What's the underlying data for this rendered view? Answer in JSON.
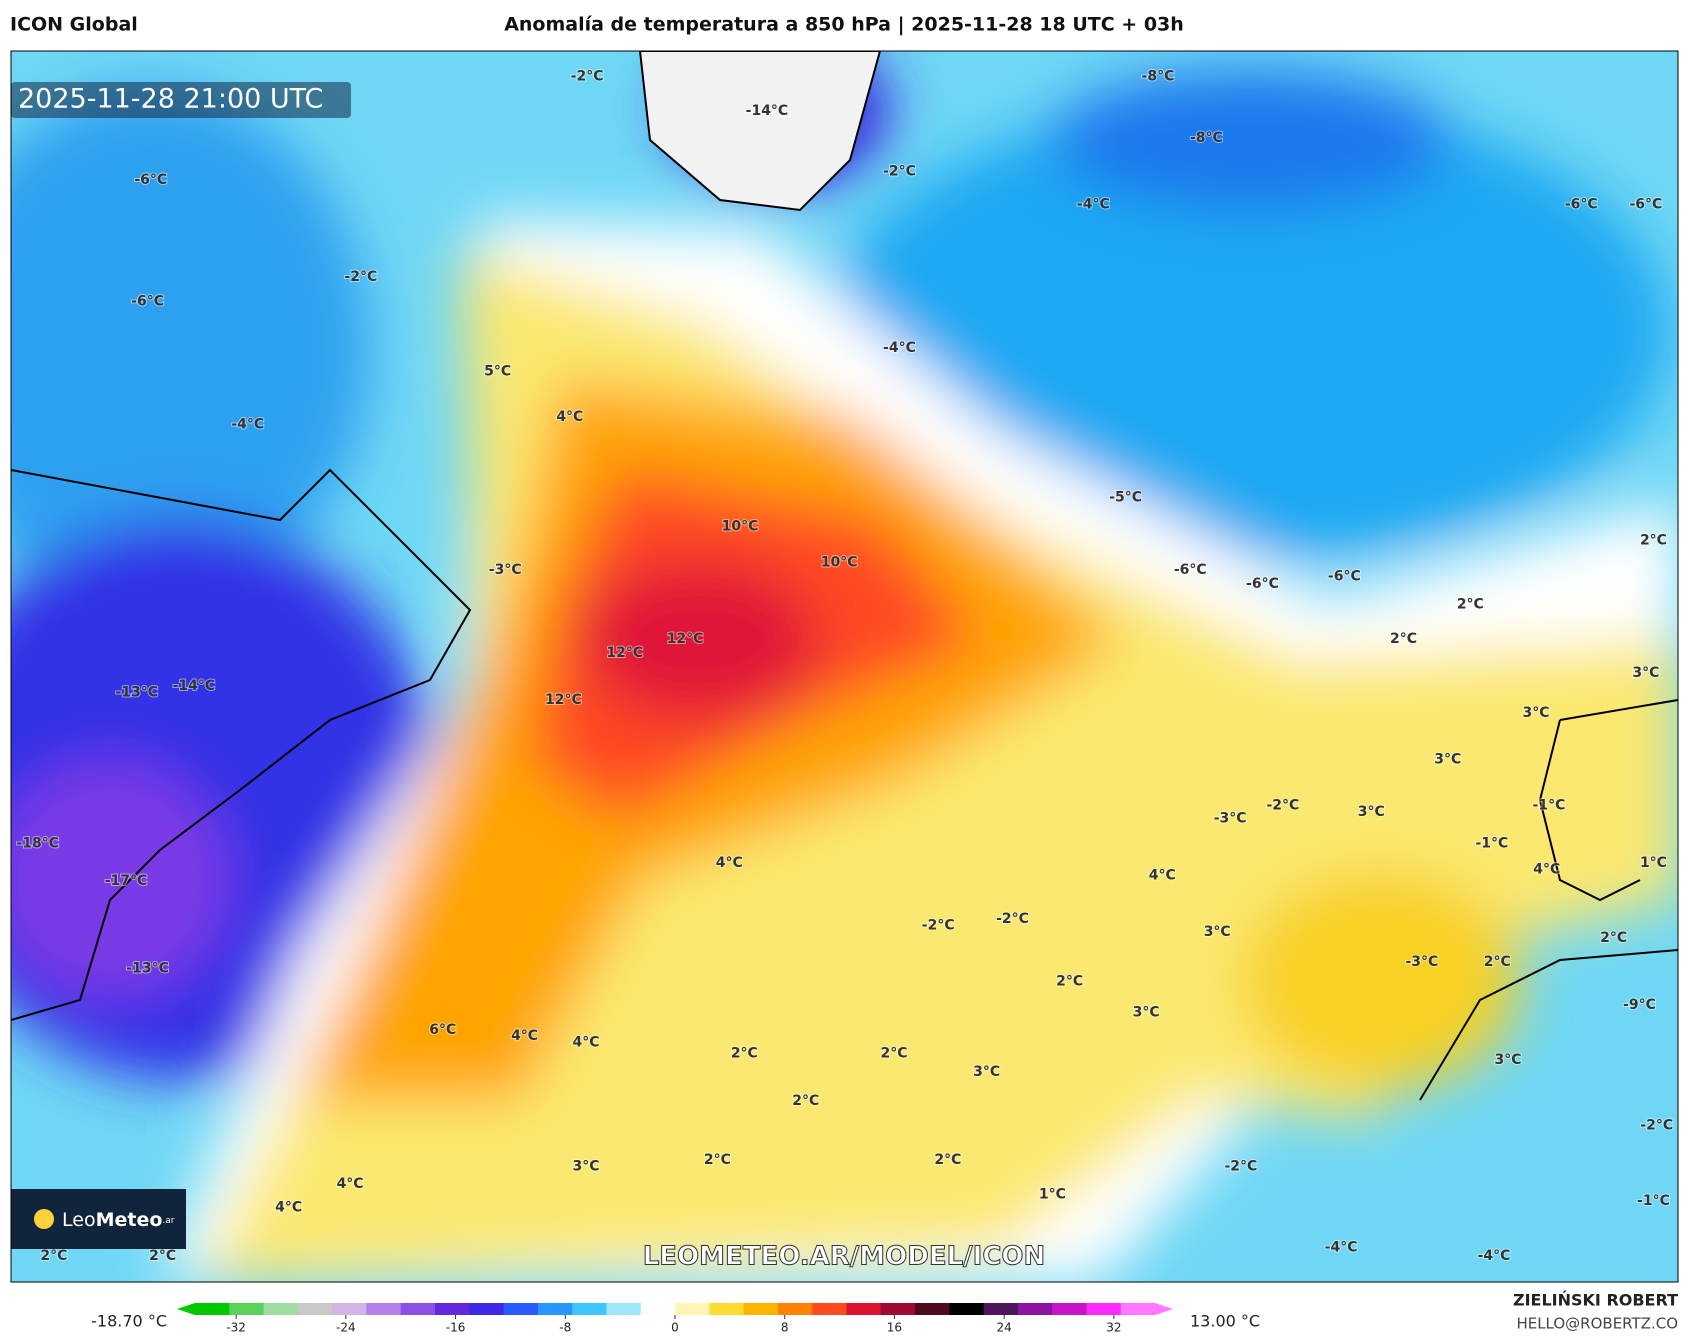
{
  "header": {
    "model": "ICON Global",
    "title": "Anomalía de temperatura a 850 hPa | 2025-11-28 18 UTC + 03h"
  },
  "map": {
    "timestamp": "2025-11-28 21:00 UTC",
    "watermark": "LEOMETEO.AR/MODEL/ICON",
    "logo_light": "Leo",
    "logo_bold": "Meteo",
    "logo_suffix": ".ar",
    "labels": [
      "-2°C",
      "-14°C",
      "-8°C",
      "-8°C",
      "-2°C",
      "-4°C",
      "-6°C",
      "-6°C",
      "-6°C",
      "-6°C",
      "-2°C",
      "5°C",
      "4°C",
      "-4°C",
      "-4°C",
      "-5°C",
      "10°C",
      "10°C",
      "-6°C",
      "-6°C",
      "-6°C",
      "2°C",
      "2°C",
      "2°C",
      "-3°C",
      "12°C",
      "12°C",
      "12°C",
      "-13°C",
      "-14°C",
      "3°C",
      "3°C",
      "3°C",
      "3°C",
      "-2°C",
      "-1°C",
      "-3°C",
      "-1°C",
      "1°C",
      "4°C",
      "4°C",
      "4°C",
      "-18°C",
      "-17°C",
      "3°C",
      "-2°C",
      "-2°C",
      "2°C",
      "2°C",
      "-3°C",
      "2°C",
      "-13°C",
      "3°C",
      "-9°C",
      "6°C",
      "4°C",
      "4°C",
      "2°C",
      "2°C",
      "3°C",
      "3°C",
      "2°C",
      "-2°C",
      "3°C",
      "2°C",
      "2°C",
      "-2°C",
      "4°C",
      "1°C",
      "4°C",
      "-1°C",
      "-4°C",
      "-4°C",
      "2°C",
      "2°C"
    ]
  },
  "colorbar": {
    "min_label": "-18.70 °C",
    "max_label": "13.00 °C",
    "range": [
      -35,
      35
    ],
    "ticks": [
      -32,
      -24,
      -16,
      -8,
      0,
      8,
      16,
      24,
      32
    ],
    "colors": [
      "#00c800",
      "#5ad25a",
      "#a0dca0",
      "#c8c8c8",
      "#d2b4e6",
      "#b482e6",
      "#8c50e6",
      "#6428dc",
      "#3c28e6",
      "#285aff",
      "#2896ff",
      "#3cc8ff",
      "#a0e6ff",
      "#ffffff",
      "#fff5b4",
      "#ffdc32",
      "#ffb400",
      "#ff8200",
      "#ff4b1e",
      "#dc1432",
      "#a00a32",
      "#500a1e",
      "#000000",
      "#50145a",
      "#8c14a0",
      "#c814c8",
      "#ff28ff",
      "#ff78ff"
    ]
  },
  "footer": {
    "author": "ZIELIŃSKI ROBERT",
    "email": "HELLO@ROBERTZ.CO"
  }
}
